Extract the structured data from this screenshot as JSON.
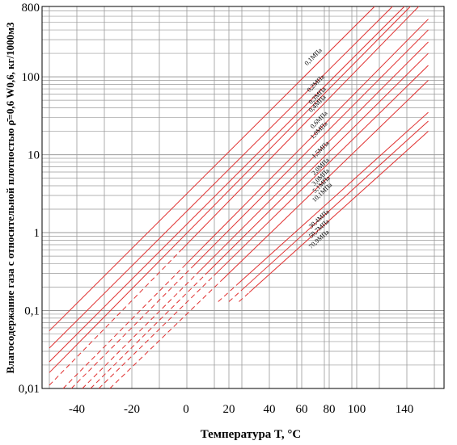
{
  "chart_data": {
    "type": "line",
    "xlabel": "Температура T, °C",
    "ylabel": "Влагосодержание газа с относительной плотностью ρ̄=0,6 W0,6, кг/1000м3",
    "yscale": "log",
    "xscale": "nonlinear",
    "xlim": [
      -50,
      160
    ],
    "ylim": [
      0.01,
      800
    ],
    "grid": true,
    "x_ticks": [
      {
        "value": -40,
        "label": "-40"
      },
      {
        "value": -20,
        "label": "-20"
      },
      {
        "value": 0,
        "label": "0"
      },
      {
        "value": 20,
        "label": "20"
      },
      {
        "value": 40,
        "label": "40"
      },
      {
        "value": 60,
        "label": "60"
      },
      {
        "value": 80,
        "label": "80"
      },
      {
        "value": 100,
        "label": "100"
      },
      {
        "value": 140,
        "label": "140"
      }
    ],
    "y_ticks": [
      {
        "value": 0.01,
        "label": "0,01"
      },
      {
        "value": 0.1,
        "label": "0,1"
      },
      {
        "value": 1,
        "label": "1"
      },
      {
        "value": 10,
        "label": "10"
      },
      {
        "value": 100,
        "label": "100"
      },
      {
        "value": 800,
        "label": "800"
      }
    ],
    "line_color": "#e03030",
    "series": [
      {
        "name": "0,1МПа",
        "x": [
          -50,
          115
        ],
        "y": [
          0.055,
          800
        ],
        "hydrate_from": null
      },
      {
        "name": "0,2МПа",
        "x": [
          -50,
          130
        ],
        "y": [
          0.033,
          800
        ],
        "hydrate_from": null
      },
      {
        "name": "0,3МПа",
        "x": [
          -50,
          140
        ],
        "y": [
          0.022,
          800
        ],
        "hydrate_from": null
      },
      {
        "name": "0,4МПа",
        "x": [
          -50,
          145
        ],
        "y": [
          0.016,
          800
        ],
        "hydrate_from": null
      },
      {
        "name": "0,6МПа",
        "x": [
          -50,
          152
        ],
        "y": [
          0.011,
          800
        ],
        "hydrate_from": -2
      },
      {
        "name": "1,0МПа",
        "x": [
          -45,
          160
        ],
        "y": [
          0.01,
          550
        ],
        "hydrate_from": 0
      },
      {
        "name": "1,5МПа",
        "x": [
          -42,
          160
        ],
        "y": [
          0.01,
          400
        ],
        "hydrate_from": 3
      },
      {
        "name": "2,0МПа",
        "x": [
          -38,
          160
        ],
        "y": [
          0.01,
          280
        ],
        "hydrate_from": 6
      },
      {
        "name": "3,0МПа",
        "x": [
          -35,
          160
        ],
        "y": [
          0.01,
          200
        ],
        "hydrate_from": 10
      },
      {
        "name": "5,1МПа",
        "x": [
          -32,
          160
        ],
        "y": [
          0.01,
          140
        ],
        "hydrate_from": 13
      },
      {
        "name": "10,1МПа",
        "x": [
          -28,
          160
        ],
        "y": [
          0.01,
          90
        ],
        "hydrate_from": 16
      },
      {
        "name": "30,4МПа",
        "x": [
          15,
          160
        ],
        "y": [
          0.13,
          35
        ],
        "hydrate_from": 24
      },
      {
        "name": "50,7МПа",
        "x": [
          20,
          160
        ],
        "y": [
          0.13,
          27
        ],
        "hydrate_from": 26
      },
      {
        "name": "70,9МПа",
        "x": [
          25,
          160
        ],
        "y": [
          0.13,
          20
        ],
        "hydrate_from": 30
      }
    ]
  }
}
